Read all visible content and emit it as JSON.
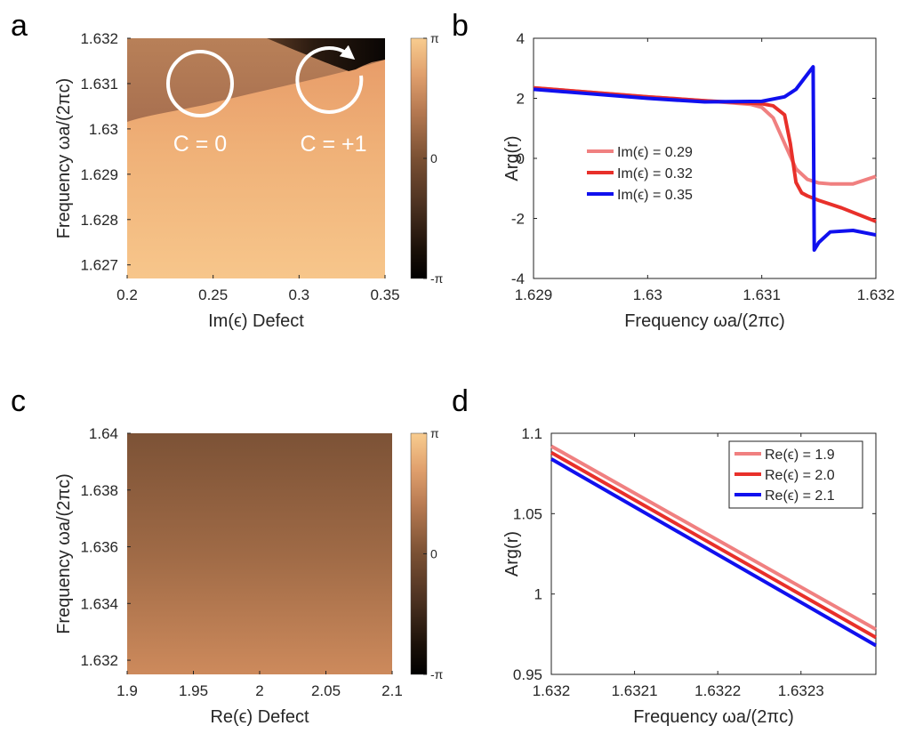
{
  "panels": {
    "a": {
      "letter": "a"
    },
    "b": {
      "letter": "b"
    },
    "c": {
      "letter": "c"
    },
    "d": {
      "letter": "d"
    }
  },
  "chart_data": [
    {
      "id": "a",
      "type": "heatmap",
      "title": "",
      "xlabel": "Im(ϵ) Defect",
      "ylabel": "Frequency ωa/(2πc)",
      "xlim": [
        0.2,
        0.35
      ],
      "ylim": [
        1.6267,
        1.632
      ],
      "xticks": [
        "0.2",
        "0.25",
        "0.3",
        "0.35"
      ],
      "xtick_values": [
        0.2,
        0.25,
        0.3,
        0.35
      ],
      "yticks": [
        "1.627",
        "1.628",
        "1.629",
        "1.63",
        "1.631",
        "1.632"
      ],
      "ytick_values": [
        1.627,
        1.628,
        1.629,
        1.63,
        1.631,
        1.632
      ],
      "colorbar": {
        "ticks": [
          "π",
          "0",
          "-π"
        ],
        "tick_values": [
          3.1416,
          0,
          -3.1416
        ],
        "range": [
          -3.1416,
          3.1416
        ]
      },
      "description_values": {
        "phase_below_boundary_low": 2.6,
        "phase_below_boundary_high": 1.8,
        "phase_above_boundary": -1.2,
        "boundary_freq_at_x": [
          [
            0.2,
            1.6302
          ],
          [
            0.25,
            1.6308
          ],
          [
            0.3,
            1.6313
          ],
          [
            0.35,
            1.6317
          ]
        ],
        "branch_cut_freq": 1.63148,
        "branch_cut_start_x": 0.31
      },
      "annotations": [
        {
          "label": "C = 0",
          "x": 0.24,
          "y": 1.63125,
          "chirality": "none"
        },
        {
          "label": "C = +1",
          "x": 0.315,
          "y": 1.63125,
          "chirality": "winding"
        }
      ]
    },
    {
      "id": "b",
      "type": "line",
      "title": "",
      "xlabel": "Frequency ωa/(2πc)",
      "ylabel": "Arg(r)",
      "xlim": [
        1.629,
        1.632
      ],
      "ylim": [
        -4,
        4
      ],
      "xticks": [
        "1.629",
        "1.63",
        "1.631",
        "1.632"
      ],
      "xtick_values": [
        1.629,
        1.63,
        1.631,
        1.632
      ],
      "yticks": [
        "4",
        "2",
        "0",
        "-2",
        "-4"
      ],
      "ytick_values": [
        4,
        2,
        0,
        -2,
        -4
      ],
      "legend_position": "middle-left",
      "series": [
        {
          "name": "Im(ϵ) = 0.29",
          "color": "#f08080",
          "x": [
            1.629,
            1.6295,
            1.63,
            1.6305,
            1.6309,
            1.631,
            1.6311,
            1.6312,
            1.6313,
            1.6314,
            1.6315,
            1.6316,
            1.6318,
            1.632
          ],
          "y": [
            2.35,
            2.2,
            2.05,
            1.92,
            1.8,
            1.7,
            1.35,
            0.5,
            -0.35,
            -0.7,
            -0.82,
            -0.85,
            -0.85,
            -0.6
          ]
        },
        {
          "name": "Im(ϵ) = 0.32",
          "color": "#e8302a",
          "x": [
            1.629,
            1.6295,
            1.63,
            1.6305,
            1.631,
            1.6311,
            1.6312,
            1.63125,
            1.6313,
            1.63135,
            1.6314,
            1.6315,
            1.6317,
            1.632
          ],
          "y": [
            2.35,
            2.2,
            2.05,
            1.92,
            1.82,
            1.75,
            1.45,
            0.5,
            -0.8,
            -1.15,
            -1.25,
            -1.4,
            -1.65,
            -2.1
          ]
        },
        {
          "name": "Im(ϵ) = 0.35",
          "color": "#1010ee",
          "x": [
            1.629,
            1.6295,
            1.63,
            1.6305,
            1.631,
            1.6312,
            1.6313,
            1.6314,
            1.63145,
            1.63146,
            1.6315,
            1.6316,
            1.6318,
            1.632
          ],
          "y": [
            2.3,
            2.15,
            2.0,
            1.88,
            1.9,
            2.05,
            2.3,
            2.8,
            3.05,
            -3.05,
            -2.8,
            -2.45,
            -2.4,
            -2.55
          ]
        }
      ]
    },
    {
      "id": "c",
      "type": "heatmap",
      "title": "",
      "xlabel": "Re(ϵ) Defect",
      "ylabel": "Frequency ωa/(2πc)",
      "xlim": [
        1.9,
        2.1
      ],
      "ylim": [
        1.6315,
        1.64
      ],
      "xticks": [
        "1.9",
        "1.95",
        "2",
        "2.05",
        "2.1"
      ],
      "xtick_values": [
        1.9,
        1.95,
        2.0,
        2.05,
        2.1
      ],
      "yticks": [
        "1.632",
        "1.634",
        "1.636",
        "1.638",
        "1.64"
      ],
      "ytick_values": [
        1.632,
        1.634,
        1.636,
        1.638,
        1.64
      ],
      "colorbar": {
        "ticks": [
          "π",
          "0",
          "-π"
        ],
        "tick_values": [
          3.1416,
          0,
          -3.1416
        ],
        "range": [
          -3.1416,
          3.1416
        ]
      },
      "description_values": {
        "phase_at_top": -0.75,
        "phase_at_bottom": 1.05
      }
    },
    {
      "id": "d",
      "type": "line",
      "title": "",
      "xlabel": "Frequency ωa/(2πc)",
      "ylabel": "Arg(r)",
      "xlim": [
        1.632,
        1.63239
      ],
      "ylim": [
        0.95,
        1.1
      ],
      "xticks": [
        "1.632",
        "1.6321",
        "1.6322",
        "1.6323"
      ],
      "xtick_values": [
        1.632,
        1.6321,
        1.6322,
        1.6323
      ],
      "yticks": [
        "1.1",
        "1.05",
        "1",
        "0.95"
      ],
      "ytick_values": [
        1.1,
        1.05,
        1.0,
        0.95
      ],
      "legend_position": "top-right",
      "series": [
        {
          "name": "Re(ϵ) = 1.9",
          "color": "#f08080",
          "x": [
            1.632,
            1.63239
          ],
          "y": [
            1.092,
            0.978
          ]
        },
        {
          "name": "Re(ϵ) = 2.0",
          "color": "#e8302a",
          "x": [
            1.632,
            1.63239
          ],
          "y": [
            1.088,
            0.973
          ]
        },
        {
          "name": "Re(ϵ) = 2.1",
          "color": "#1010ee",
          "x": [
            1.632,
            1.63239
          ],
          "y": [
            1.084,
            0.968
          ]
        }
      ]
    }
  ]
}
